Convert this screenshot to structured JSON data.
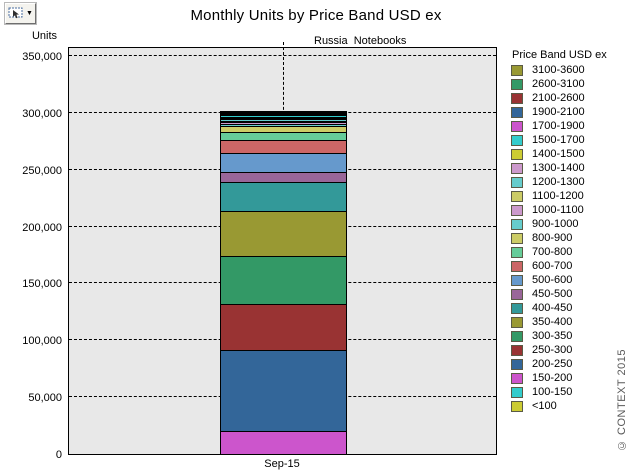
{
  "title": "Monthly Units by Price Band USD ex",
  "subtitle": "Russia  Notebooks",
  "icons": {
    "dropdown_arrow": "▼"
  },
  "y_axis": {
    "label": "Units",
    "ticks": [
      {
        "value": 0,
        "label": "0"
      },
      {
        "value": 50000,
        "label": "50,000"
      },
      {
        "value": 100000,
        "label": "100,000"
      },
      {
        "value": 150000,
        "label": "150,000"
      },
      {
        "value": 200000,
        "label": "200,000"
      },
      {
        "value": 250000,
        "label": "250,000"
      },
      {
        "value": 300000,
        "label": "300,000"
      },
      {
        "value": 350000,
        "label": "350,000"
      }
    ]
  },
  "x_axis": {
    "category": "Sep-15"
  },
  "legend": {
    "title": "Price Band USD ex"
  },
  "watermark": "© CONTEXT 2015",
  "chart_data": {
    "type": "bar",
    "stacked": true,
    "title": "Monthly Units by Price Band USD ex",
    "subtitle": "Russia  Notebooks",
    "ylabel": "Units",
    "xlabel": "",
    "categories": [
      "Sep-15"
    ],
    "ylim": [
      0,
      358000
    ],
    "ytick_step": 50000,
    "grid": "horizontal-dashed",
    "legend_position": "right",
    "plot_background": "#e8e8e8",
    "total_units_approx": 301700,
    "series": [
      {
        "name": "<100",
        "color": "#CCCC33",
        "values": [
          0
        ]
      },
      {
        "name": "100-150",
        "color": "#33CCCC",
        "values": [
          0
        ]
      },
      {
        "name": "150-200",
        "color": "#CC55CC",
        "values": [
          20000
        ]
      },
      {
        "name": "200-250",
        "color": "#336699",
        "values": [
          71500
        ]
      },
      {
        "name": "250-300",
        "color": "#993333",
        "values": [
          40500
        ]
      },
      {
        "name": "300-350",
        "color": "#339966",
        "values": [
          42000
        ]
      },
      {
        "name": "350-400",
        "color": "#999933",
        "values": [
          39500
        ]
      },
      {
        "name": "400-450",
        "color": "#339999",
        "values": [
          25500
        ]
      },
      {
        "name": "450-500",
        "color": "#996699",
        "values": [
          9000
        ]
      },
      {
        "name": "500-600",
        "color": "#6699CC",
        "values": [
          17000
        ]
      },
      {
        "name": "600-700",
        "color": "#CC6666",
        "values": [
          11000
        ]
      },
      {
        "name": "700-800",
        "color": "#66CC99",
        "values": [
          7000
        ]
      },
      {
        "name": "800-900",
        "color": "#CCCC66",
        "values": [
          5500
        ]
      },
      {
        "name": "900-1000",
        "color": "#66CCCC",
        "values": [
          1800
        ]
      },
      {
        "name": "1000-1100",
        "color": "#CC99CC",
        "values": [
          1800
        ]
      },
      {
        "name": "1100-1200",
        "color": "#CCCC66",
        "values": [
          1000
        ]
      },
      {
        "name": "1200-1300",
        "color": "#66CCCC",
        "values": [
          1800
        ]
      },
      {
        "name": "1300-1400",
        "color": "#CC99CC",
        "values": [
          1000
        ]
      },
      {
        "name": "1400-1500",
        "color": "#CCCC33",
        "values": [
          900
        ]
      },
      {
        "name": "1500-1700",
        "color": "#33CCCC",
        "values": [
          900
        ]
      },
      {
        "name": "1700-1900",
        "color": "#CC55CC",
        "values": [
          800
        ]
      },
      {
        "name": "1900-2100",
        "color": "#336699",
        "values": [
          800
        ]
      },
      {
        "name": "2100-2600",
        "color": "#993333",
        "values": [
          800
        ]
      },
      {
        "name": "2600-3100",
        "color": "#339966",
        "values": [
          800
        ]
      },
      {
        "name": "3100-3600",
        "color": "#999933",
        "values": [
          800
        ]
      }
    ]
  }
}
